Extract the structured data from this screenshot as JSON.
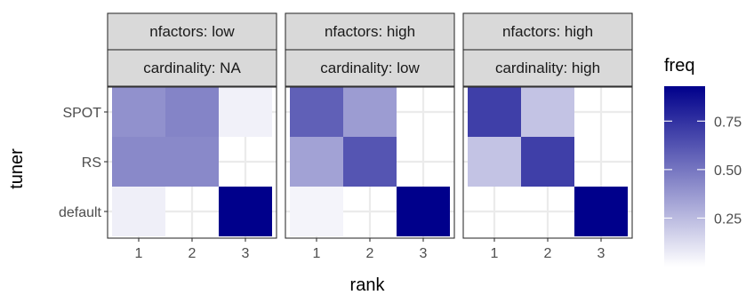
{
  "chart_data": {
    "type": "heatmap",
    "xlabel": "rank",
    "ylabel": "tuner",
    "x_categories": [
      "1",
      "2",
      "3"
    ],
    "y_categories": [
      "default",
      "RS",
      "SPOT"
    ],
    "legend": {
      "title": "freq",
      "ticks": [
        0.25,
        0.5,
        0.75
      ],
      "tick_labels": [
        "0.25",
        "0.50",
        "0.75"
      ],
      "range": [
        0,
        0.93
      ],
      "low_color": "#ffffff",
      "high_color": "#00008b",
      "placement": "right"
    },
    "grid": true,
    "panels": [
      {
        "strips": [
          "nfactors: low",
          "cardinality: NA"
        ],
        "cells": [
          {
            "tuner": "SPOT",
            "rank": "1",
            "freq": 0.4
          },
          {
            "tuner": "SPOT",
            "rank": "2",
            "freq": 0.45
          },
          {
            "tuner": "SPOT",
            "rank": "3",
            "freq": 0.05
          },
          {
            "tuner": "RS",
            "rank": "1",
            "freq": 0.43
          },
          {
            "tuner": "RS",
            "rank": "2",
            "freq": 0.43
          },
          {
            "tuner": "default",
            "rank": "1",
            "freq": 0.06
          },
          {
            "tuner": "default",
            "rank": "3",
            "freq": 0.93
          }
        ]
      },
      {
        "strips": [
          "nfactors: high",
          "cardinality: low"
        ],
        "cells": [
          {
            "tuner": "SPOT",
            "rank": "1",
            "freq": 0.58
          },
          {
            "tuner": "SPOT",
            "rank": "2",
            "freq": 0.36
          },
          {
            "tuner": "RS",
            "rank": "1",
            "freq": 0.34
          },
          {
            "tuner": "RS",
            "rank": "2",
            "freq": 0.62
          },
          {
            "tuner": "default",
            "rank": "1",
            "freq": 0.04
          },
          {
            "tuner": "default",
            "rank": "3",
            "freq": 0.93
          }
        ]
      },
      {
        "strips": [
          "nfactors: high",
          "cardinality: high"
        ],
        "cells": [
          {
            "tuner": "SPOT",
            "rank": "1",
            "freq": 0.7
          },
          {
            "tuner": "SPOT",
            "rank": "2",
            "freq": 0.22
          },
          {
            "tuner": "RS",
            "rank": "1",
            "freq": 0.22
          },
          {
            "tuner": "RS",
            "rank": "2",
            "freq": 0.7
          },
          {
            "tuner": "default",
            "rank": "3",
            "freq": 0.93
          }
        ]
      }
    ]
  }
}
